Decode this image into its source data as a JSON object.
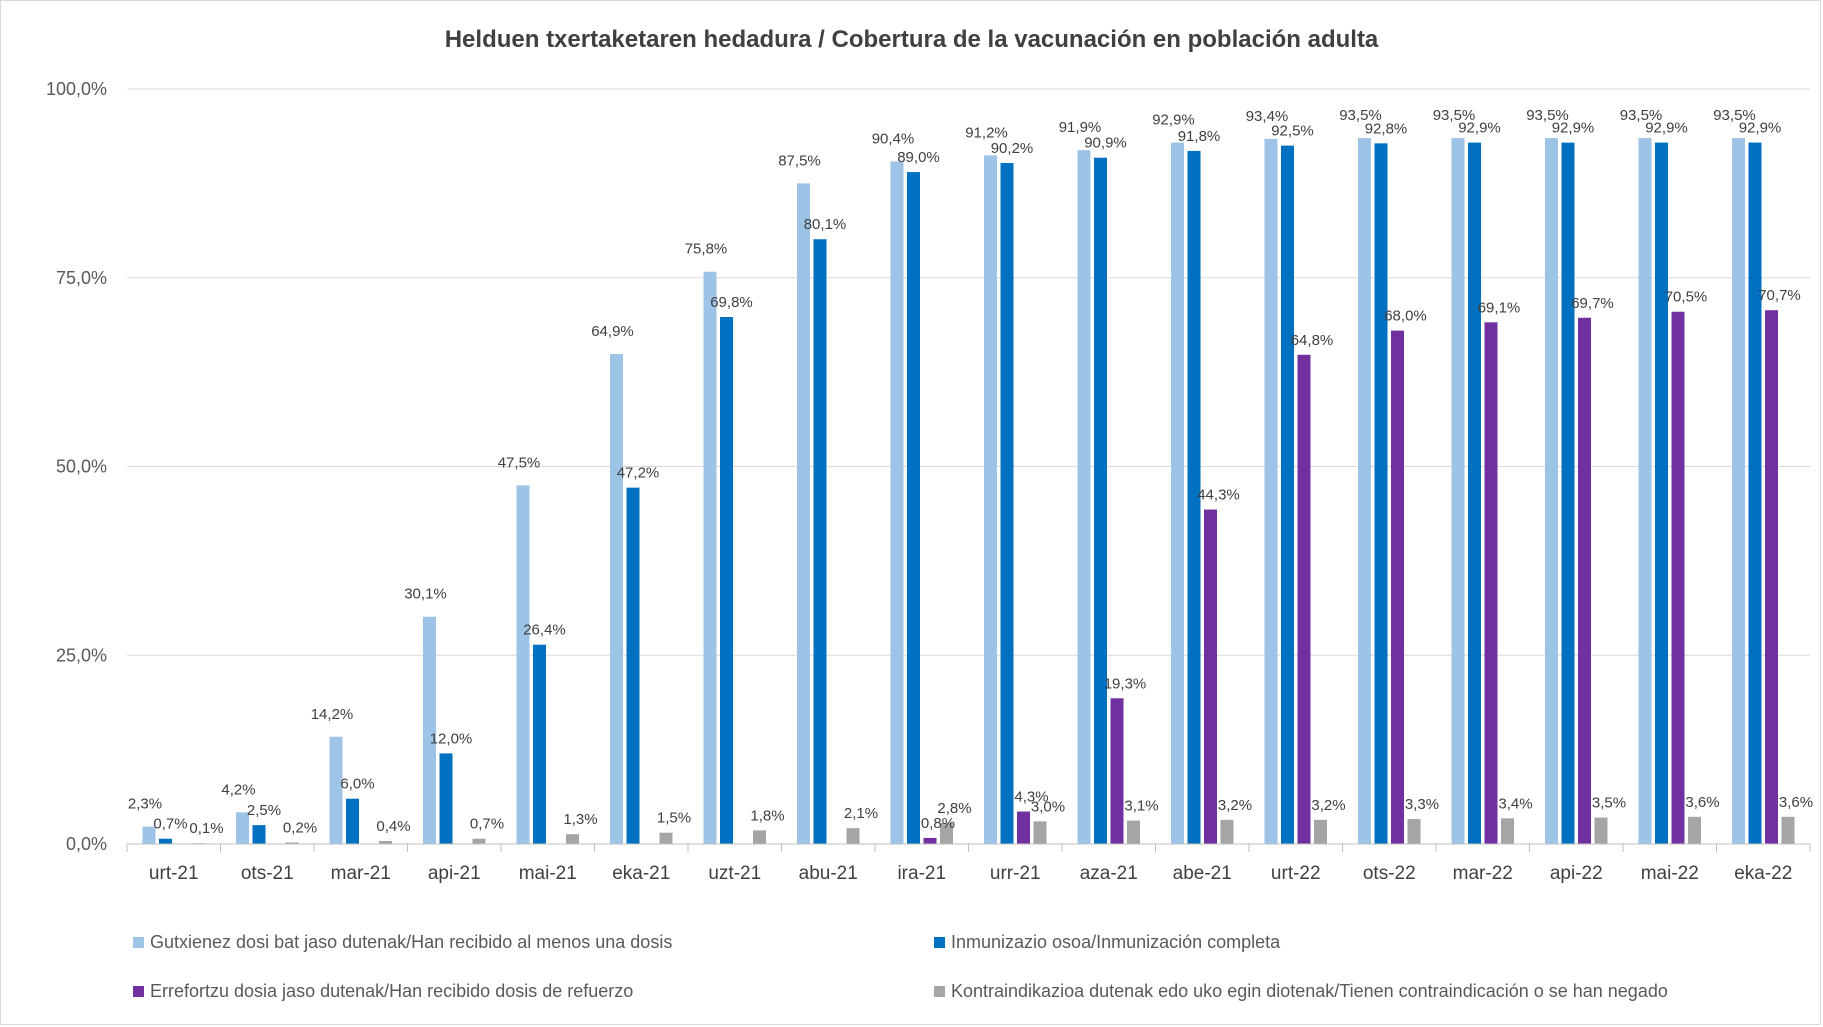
{
  "chart_data": {
    "type": "bar",
    "title": "Helduen txertaketaren hedadura / Cobertura de la vacunación en población adulta",
    "categories": [
      "urt-21",
      "ots-21",
      "mar-21",
      "api-21",
      "mai-21",
      "eka-21",
      "uzt-21",
      "abu-21",
      "ira-21",
      "urr-21",
      "aza-21",
      "abe-21",
      "urt-22",
      "ots-22",
      "mar-22",
      "api-22",
      "mai-22",
      "eka-22"
    ],
    "ylim": [
      0,
      100
    ],
    "yticks": [
      "0,0%",
      "25,0%",
      "50,0%",
      "75,0%",
      "100,0%"
    ],
    "grid": true,
    "legend_position": "bottom",
    "series": [
      {
        "name": "Gutxienez dosi bat jaso dutenak/Han recibido al menos una dosis",
        "color": "#9dc3e6",
        "values": [
          2.3,
          4.2,
          14.2,
          30.1,
          47.5,
          64.9,
          75.8,
          87.5,
          90.4,
          91.2,
          91.9,
          92.9,
          93.4,
          93.5,
          93.5,
          93.5,
          93.5,
          93.5
        ],
        "labels": [
          "2,3%",
          "4,2%",
          "14,2%",
          "30,1%",
          "47,5%",
          "64,9%",
          "75,8%",
          "87,5%",
          "90,4%",
          "91,2%",
          "91,9%",
          "92,9%",
          "93,4%",
          "93,5%",
          "93,5%",
          "93,5%",
          "93,5%",
          "93,5%"
        ]
      },
      {
        "name": "Inmunizazio osoa/Inmunización completa",
        "color": "#0070c0",
        "values": [
          0.7,
          2.5,
          6.0,
          12.0,
          26.4,
          47.2,
          69.8,
          80.1,
          89.0,
          90.2,
          90.9,
          91.8,
          92.5,
          92.8,
          92.9,
          92.9,
          92.9,
          92.9
        ],
        "labels": [
          "0,7%",
          "2,5%",
          "6,0%",
          "12,0%",
          "26,4%",
          "47,2%",
          "69,8%",
          "80,1%",
          "89,0%",
          "90,2%",
          "90,9%",
          "91,8%",
          "92,5%",
          "92,8%",
          "92,9%",
          "92,9%",
          "92,9%",
          "92,9%"
        ]
      },
      {
        "name": "Errefortzu dosia jaso dutenak/Han recibido dosis de refuerzo",
        "color": "#7030a0",
        "values": [
          null,
          null,
          null,
          null,
          null,
          null,
          null,
          null,
          0.8,
          4.3,
          19.3,
          44.3,
          64.8,
          68.0,
          69.1,
          69.7,
          70.5,
          70.7
        ],
        "labels": [
          null,
          null,
          null,
          null,
          null,
          null,
          null,
          null,
          "0,8%",
          "4,3%",
          "19,3%",
          "44,3%",
          "64,8%",
          "68,0%",
          "69,1%",
          "69,7%",
          "70,5%",
          "70,7%"
        ]
      },
      {
        "name": "Kontraindikazioa dutenak edo uko egin diotenak/Tienen contraindicación o se han negado",
        "color": "#a5a5a5",
        "values": [
          0.1,
          0.2,
          0.4,
          0.7,
          1.3,
          1.5,
          1.8,
          2.1,
          2.8,
          3.0,
          3.1,
          3.2,
          3.2,
          3.3,
          3.4,
          3.5,
          3.6,
          3.6
        ],
        "labels": [
          "0,1%",
          "0,2%",
          "0,4%",
          "0,7%",
          "1,3%",
          "1,5%",
          "1,8%",
          "2,1%",
          "2,8%",
          "3,0%",
          "3,1%",
          "3,2%",
          "3,2%",
          "3,3%",
          "3,4%",
          "3,5%",
          "3,6%",
          "3,6%"
        ]
      }
    ]
  }
}
